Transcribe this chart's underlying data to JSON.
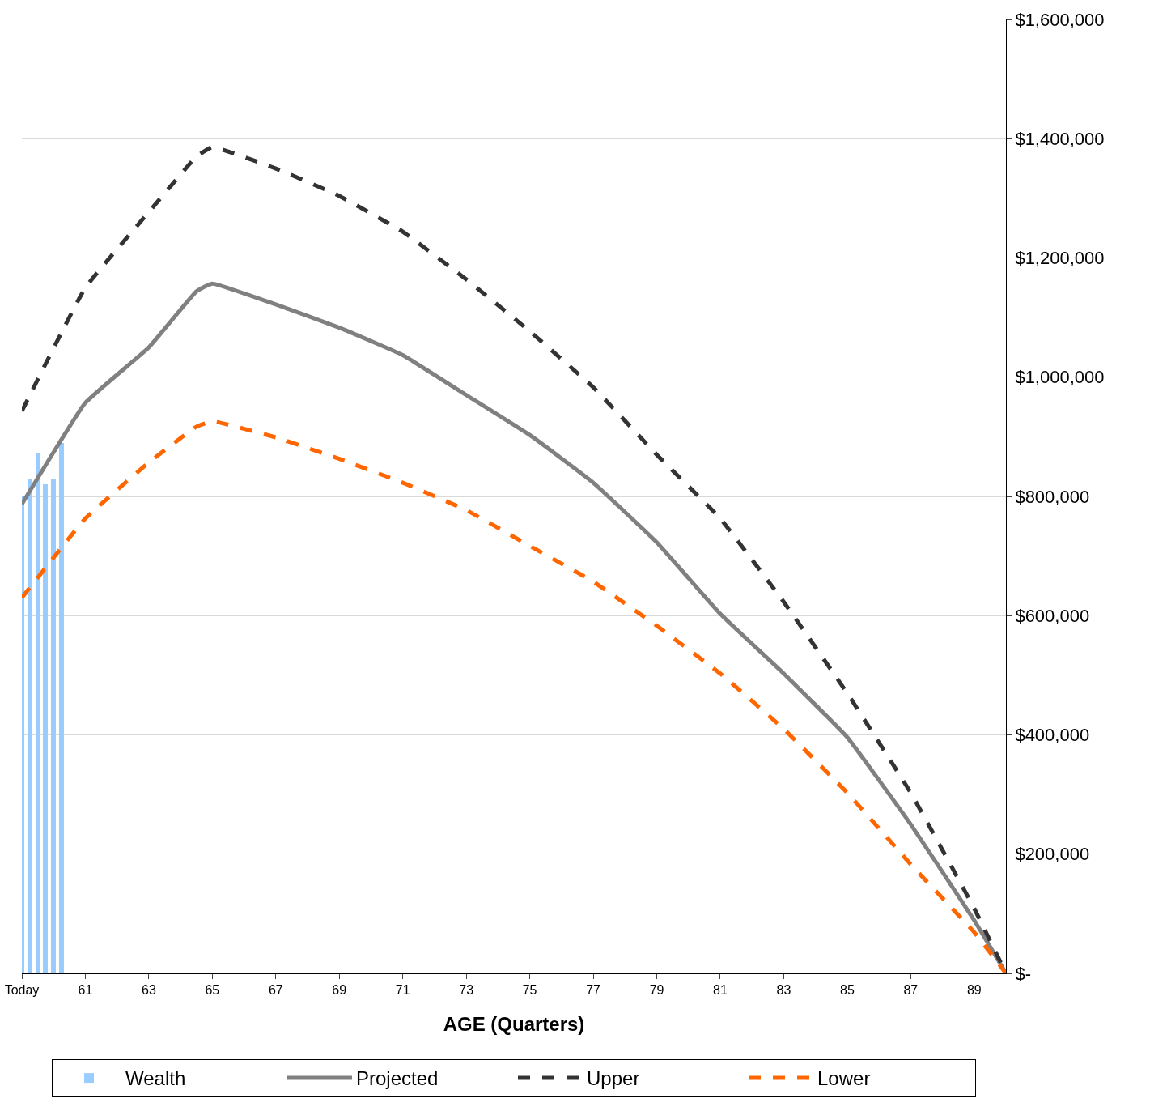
{
  "chart_data": {
    "type": "line",
    "xlabel": "AGE (Quarters)",
    "xlim": [
      59,
      90
    ],
    "xticks": [
      {
        "value": 59,
        "label": "Today"
      },
      61,
      63,
      65,
      67,
      69,
      71,
      73,
      75,
      77,
      79,
      81,
      83,
      85,
      87,
      89
    ],
    "ylim": [
      0,
      1600000
    ],
    "yticks": [
      {
        "value": 0,
        "label": "$-"
      },
      {
        "value": 200000,
        "label": "$200,000"
      },
      {
        "value": 400000,
        "label": "$400,000"
      },
      {
        "value": 600000,
        "label": "$600,000"
      },
      {
        "value": 800000,
        "label": "$800,000"
      },
      {
        "value": 1000000,
        "label": "$1,000,000"
      },
      {
        "value": 1200000,
        "label": "$1,200,000"
      },
      {
        "value": 1400000,
        "label": "$1,400,000"
      },
      {
        "value": 1600000,
        "label": "$1,600,000"
      }
    ],
    "grid": "y",
    "legend": "bottom",
    "series": [
      {
        "name": "Wealth",
        "type": "bar",
        "color": "#99ccff",
        "x": [
          59,
          59.25,
          59.5,
          59.75,
          60,
          60.25
        ],
        "values": [
          800000,
          830000,
          874000,
          821000,
          829000,
          889000
        ]
      },
      {
        "name": "Projected",
        "line_style": "solid",
        "color": "#808080",
        "x": [
          59,
          61,
          63,
          64.5,
          65,
          67,
          69,
          71,
          73,
          75,
          77,
          79,
          81,
          83,
          85,
          87,
          89,
          90
        ],
        "values": [
          787000,
          957000,
          1050000,
          1144000,
          1157000,
          1122000,
          1083000,
          1037000,
          970000,
          903000,
          823000,
          723000,
          603000,
          503000,
          396000,
          250000,
          89000,
          0
        ]
      },
      {
        "name": "Upper",
        "line_style": "dashed",
        "color": "#333333",
        "x": [
          59,
          61,
          63,
          64.5,
          65,
          67,
          69,
          71,
          73,
          75,
          77,
          79,
          81,
          83,
          85,
          87,
          89,
          90
        ],
        "values": [
          943000,
          1150000,
          1277000,
          1370000,
          1386000,
          1350000,
          1304000,
          1244000,
          1164000,
          1077000,
          983000,
          870000,
          763000,
          623000,
          470000,
          303000,
          109000,
          0
        ]
      },
      {
        "name": "Lower",
        "line_style": "dashed",
        "color": "#ff6600",
        "x": [
          59,
          61,
          63,
          64.5,
          65,
          67,
          69,
          71,
          73,
          75,
          77,
          79,
          81,
          83,
          85,
          87,
          89,
          90
        ],
        "values": [
          630000,
          763000,
          857000,
          917000,
          926000,
          899000,
          863000,
          823000,
          777000,
          717000,
          657000,
          583000,
          503000,
          410000,
          303000,
          183000,
          69000,
          0
        ]
      }
    ]
  }
}
